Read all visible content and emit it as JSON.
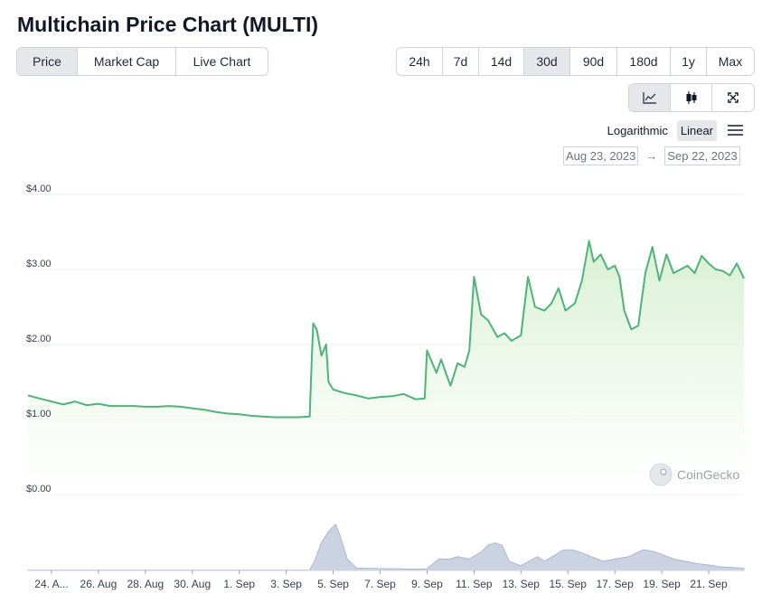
{
  "title": "Multichain Price Chart (MULTI)",
  "view_tabs": [
    {
      "label": "Price",
      "active": true
    },
    {
      "label": "Market Cap",
      "active": false
    },
    {
      "label": "Live Chart",
      "active": false
    }
  ],
  "range_tabs": [
    {
      "label": "24h",
      "active": false
    },
    {
      "label": "7d",
      "active": false
    },
    {
      "label": "14d",
      "active": false
    },
    {
      "label": "30d",
      "active": true
    },
    {
      "label": "90d",
      "active": false
    },
    {
      "label": "180d",
      "active": false
    },
    {
      "label": "1y",
      "active": false
    },
    {
      "label": "Max",
      "active": false
    }
  ],
  "chart_type_buttons": [
    {
      "icon": "line-chart-icon",
      "active": true
    },
    {
      "icon": "candlestick-icon",
      "active": false
    },
    {
      "icon": "fullscreen-icon",
      "active": false
    }
  ],
  "scale": {
    "logarithmic": "Logarithmic",
    "linear": "Linear",
    "active": "linear"
  },
  "date_range": {
    "from": "Aug 23, 2023",
    "arrow": "→",
    "to": "Sep 22, 2023"
  },
  "watermark": "CoinGecko",
  "colors": {
    "line": "#4fb37a",
    "fill": "#e6f5e4",
    "volume": "#b9c3d8",
    "grid": "#ececec"
  },
  "chart_data": {
    "type": "area",
    "title": "",
    "ylabel": "",
    "xlabel": "",
    "y_ticks": [
      "$4.00",
      "$3.00",
      "$2.00",
      "$1.00",
      "$0.00"
    ],
    "ylim": [
      0,
      4
    ],
    "x_ticks": [
      "24. A...",
      "26. Aug",
      "28. Aug",
      "30. Aug",
      "1. Sep",
      "3. Sep",
      "5. Sep",
      "7. Sep",
      "9. Sep",
      "11. Sep",
      "13. Sep",
      "15. Sep",
      "17. Sep",
      "19. Sep",
      "21. Sep"
    ],
    "x_tick_days": [
      1,
      3,
      5,
      7,
      9,
      11,
      13,
      15,
      17,
      19,
      21,
      23,
      25,
      27,
      29
    ],
    "x_start": "Aug 23, 2023",
    "x_end": "Sep 22, 2023",
    "grid": true,
    "series": [
      {
        "x_days": [
          0,
          0.5,
          1,
          1.5,
          2,
          2.5,
          3,
          3.5,
          4,
          4.5,
          5,
          5.5,
          6,
          6.5,
          7,
          7.5,
          8,
          8.5,
          9,
          9.5,
          10,
          10.5,
          11,
          11.5,
          12,
          12.1,
          12.15,
          12.3,
          12.5,
          12.7,
          12.8,
          13,
          13.2,
          13.5,
          14,
          14.5,
          15,
          15.5,
          16,
          16.5,
          16.9,
          17,
          17.4,
          17.6,
          17.8,
          18,
          18.3,
          18.6,
          18.8,
          19,
          19.3,
          19.6,
          20,
          20.3,
          20.6,
          21,
          21.3,
          21.6,
          22,
          22.3,
          22.6,
          22.9,
          23.1,
          23.3,
          23.6,
          23.9,
          24.1,
          24.4,
          24.7,
          25,
          25.2,
          25.4,
          25.7,
          26,
          26.3,
          26.6,
          26.9,
          27.2,
          27.5,
          27.8,
          28.1,
          28.4,
          28.7,
          29,
          29.3,
          29.6,
          29.9,
          30.2,
          30.5
        ],
        "y": [
          1.32,
          1.28,
          1.24,
          1.2,
          1.24,
          1.19,
          1.21,
          1.18,
          1.18,
          1.18,
          1.17,
          1.17,
          1.18,
          1.17,
          1.15,
          1.13,
          1.1,
          1.08,
          1.07,
          1.05,
          1.04,
          1.03,
          1.03,
          1.03,
          1.04,
          1.9,
          2.28,
          2.2,
          1.85,
          2.0,
          1.5,
          1.4,
          1.38,
          1.35,
          1.32,
          1.28,
          1.3,
          1.31,
          1.34,
          1.27,
          1.28,
          1.92,
          1.62,
          1.8,
          1.62,
          1.45,
          1.75,
          1.7,
          1.92,
          2.9,
          2.4,
          2.32,
          2.1,
          2.15,
          2.05,
          2.12,
          2.9,
          2.5,
          2.45,
          2.55,
          2.75,
          2.45,
          2.5,
          2.55,
          2.85,
          3.38,
          3.1,
          3.2,
          3.0,
          3.05,
          2.9,
          2.45,
          2.2,
          2.25,
          2.95,
          3.3,
          2.85,
          3.2,
          2.95,
          3.0,
          3.05,
          2.95,
          3.18,
          3.08,
          3.0,
          2.98,
          2.92,
          3.08,
          2.88
        ]
      }
    ],
    "volume": {
      "x_days": [
        0,
        12,
        12.2,
        12.5,
        12.8,
        13.1,
        13.3,
        13.6,
        14,
        16.5,
        17,
        17.5,
        18,
        18.3,
        18.8,
        19.3,
        19.6,
        19.9,
        20.2,
        20.5,
        21,
        21.5,
        21.7,
        22,
        22.5,
        22.8,
        23.2,
        23.5,
        24,
        24.5,
        25,
        25.6,
        26.2,
        26.6,
        27,
        27.5,
        28,
        28.5,
        29,
        29.5,
        30.5
      ],
      "values": [
        0.01,
        0.01,
        0.2,
        0.6,
        0.85,
        1.0,
        0.75,
        0.25,
        0.05,
        0.03,
        0.04,
        0.25,
        0.25,
        0.3,
        0.25,
        0.4,
        0.55,
        0.6,
        0.55,
        0.2,
        0.1,
        0.25,
        0.3,
        0.2,
        0.35,
        0.45,
        0.45,
        0.4,
        0.3,
        0.2,
        0.25,
        0.3,
        0.45,
        0.42,
        0.35,
        0.25,
        0.2,
        0.15,
        0.12,
        0.08,
        0.05
      ]
    }
  }
}
